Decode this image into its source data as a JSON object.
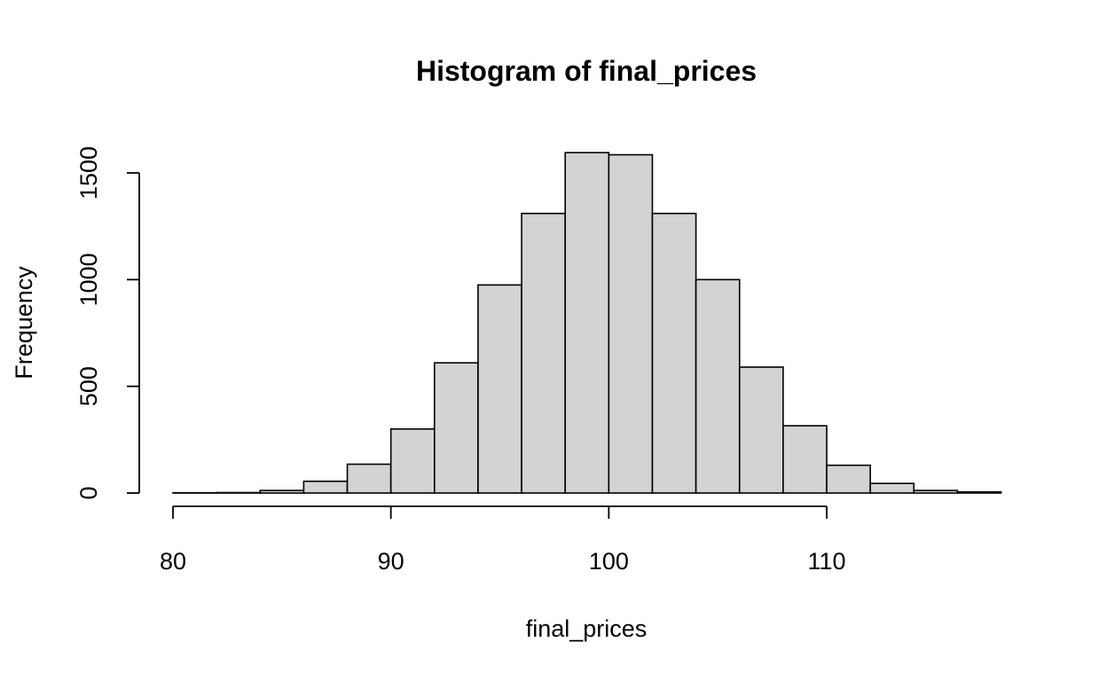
{
  "chart_data": {
    "type": "bar",
    "title": "Histogram of final_prices",
    "xlabel": "final_prices",
    "ylabel": "Frequency",
    "bin_edges": [
      80,
      82,
      84,
      86,
      88,
      90,
      92,
      94,
      96,
      98,
      100,
      102,
      104,
      106,
      108,
      110,
      112,
      114,
      116,
      118
    ],
    "values": [
      1,
      2,
      12,
      55,
      135,
      300,
      610,
      975,
      1310,
      1595,
      1585,
      1310,
      1000,
      590,
      315,
      130,
      45,
      12,
      5
    ],
    "xlim": [
      80,
      118
    ],
    "ylim": [
      0,
      1600
    ],
    "x_ticks": [
      80,
      90,
      100,
      110
    ],
    "y_ticks": [
      0,
      500,
      1000,
      1500
    ],
    "grid": false,
    "bar_color": "#d3d3d3",
    "edge_color": "#000000"
  }
}
